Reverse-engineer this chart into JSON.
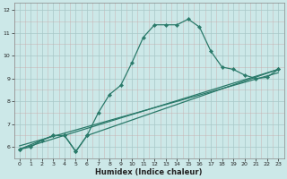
{
  "title": "",
  "xlabel": "Humidex (Indice chaleur)",
  "background_color": "#cce8e8",
  "grid_color_major": "#aacece",
  "grid_color_minor": "#ddb8b8",
  "line_color": "#2a7a6a",
  "xlim": [
    -0.5,
    23.5
  ],
  "ylim": [
    5.5,
    12.3
  ],
  "xticks": [
    0,
    1,
    2,
    3,
    4,
    5,
    6,
    7,
    8,
    9,
    10,
    11,
    12,
    13,
    14,
    15,
    16,
    17,
    18,
    19,
    20,
    21,
    22,
    23
  ],
  "yticks": [
    6,
    7,
    8,
    9,
    10,
    11,
    12
  ],
  "series1_x": [
    0,
    1,
    2,
    3,
    4,
    5,
    6,
    7,
    8,
    9,
    10,
    11,
    12,
    13,
    14,
    15,
    16,
    17,
    18,
    19,
    20,
    21,
    22,
    23
  ],
  "series1_y": [
    5.9,
    6.0,
    6.3,
    6.5,
    6.5,
    5.8,
    6.5,
    7.5,
    8.3,
    8.7,
    9.7,
    10.8,
    11.35,
    11.35,
    11.35,
    11.6,
    11.25,
    10.2,
    9.5,
    9.4,
    9.15,
    9.0,
    9.05,
    9.4
  ],
  "series2_x": [
    0,
    3,
    4,
    5,
    6,
    23
  ],
  "series2_y": [
    5.9,
    6.5,
    6.5,
    5.8,
    6.5,
    9.4
  ],
  "series3_x": [
    0,
    23
  ],
  "series3_y": [
    6.05,
    9.25
  ],
  "series4_x": [
    0,
    23
  ],
  "series4_y": [
    5.9,
    9.4
  ]
}
